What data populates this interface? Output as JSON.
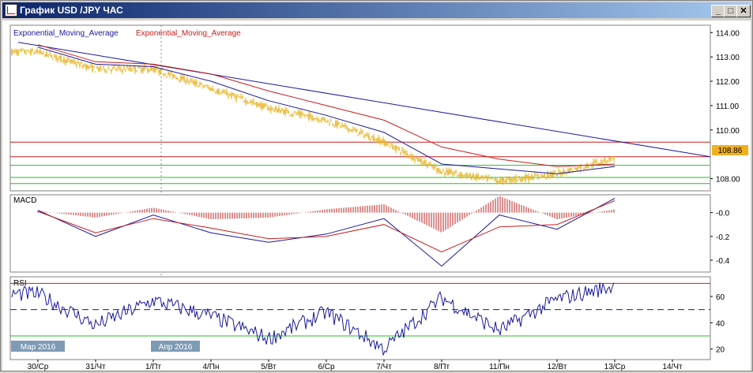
{
  "window": {
    "title": "График USD /JPY  ЧАС",
    "minimize_glyph": "_",
    "restore_glyph": "□",
    "close_glyph": "✕"
  },
  "colors": {
    "candles": "#e6b422",
    "ema_fast": "#1a1a9c",
    "ema_slow": "#c81e1e",
    "trendline": "#1a1a9c",
    "resistance": "#c81e1e",
    "support": "#22c022",
    "current_price_box": "#f0b020",
    "date_badge": "#7e9bb5"
  },
  "price_panel": {
    "legend": [
      "Exponential_Moving_Average",
      "Exponential_Moving_Average"
    ],
    "y_ticks": [
      "114.00",
      "113.00",
      "112.00",
      "111.00",
      "110.00",
      "108.00"
    ],
    "current_price": "108.86",
    "ylim": [
      107.5,
      114.3
    ],
    "horizontal_levels": {
      "resistance": [
        109.5,
        108.9
      ],
      "support": [
        108.55,
        108.05,
        107.8
      ]
    }
  },
  "macd_panel": {
    "label": "MACD",
    "y_ticks": [
      "-0.0",
      "-0.2",
      "-0.4"
    ]
  },
  "rsi_panel": {
    "label": "RSI",
    "y_ticks": [
      "60",
      "40",
      "20"
    ],
    "overbought": 70,
    "oversold": 30,
    "midline": 50
  },
  "x_axis": {
    "labels": [
      "30/Ср",
      "31/Чт",
      "1/Пт",
      "4/Пн",
      "5/Вт",
      "6/Ср",
      "7/Чт",
      "8/Пт",
      "11/Пн",
      "12/Вт",
      "13/Ср",
      "14/Чт"
    ],
    "month_badges": [
      "Мар 2016",
      "Апр 2016"
    ]
  },
  "chart_data": [
    {
      "type": "line",
      "x": [
        "30/Ср",
        "31/Чт",
        "1/Пт",
        "4/Пн",
        "5/Вт",
        "6/Ср",
        "7/Чт",
        "8/Пт",
        "11/Пн",
        "12/Вт",
        "13/Ср"
      ],
      "series": [
        {
          "name": "USD/JPY",
          "values": [
            113.2,
            112.5,
            112.5,
            111.7,
            110.9,
            110.4,
            109.5,
            108.3,
            107.9,
            108.2,
            108.86
          ]
        },
        {
          "name": "Exponential_Moving_Average",
          "values": [
            113.4,
            112.7,
            112.6,
            112.0,
            111.2,
            110.6,
            109.9,
            108.6,
            108.4,
            108.2,
            108.5
          ]
        },
        {
          "name": "Exponential_Moving_Average",
          "values": [
            113.5,
            112.8,
            112.7,
            112.3,
            111.6,
            111.0,
            110.4,
            109.3,
            108.8,
            108.5,
            108.6
          ]
        }
      ],
      "ylim": [
        107.5,
        114.3
      ]
    },
    {
      "type": "line",
      "title": "MACD",
      "x": [
        "30/Ср",
        "31/Чт",
        "1/Пт",
        "4/Пн",
        "5/Вт",
        "6/Ср",
        "7/Чт",
        "8/Пт",
        "11/Пн",
        "12/Вт",
        "13/Ср"
      ],
      "series": [
        {
          "name": "macd",
          "values": [
            0.02,
            -0.2,
            -0.02,
            -0.17,
            -0.25,
            -0.18,
            -0.05,
            -0.45,
            -0.02,
            -0.14,
            0.12
          ]
        },
        {
          "name": "signal",
          "values": [
            0.01,
            -0.17,
            -0.05,
            -0.13,
            -0.22,
            -0.2,
            -0.1,
            -0.33,
            -0.12,
            -0.1,
            0.1
          ]
        }
      ],
      "ylim": [
        -0.5,
        0.15
      ]
    },
    {
      "type": "line",
      "title": "RSI",
      "x": [
        "30/Ср",
        "31/Чт",
        "1/Пт",
        "4/Пн",
        "5/Вт",
        "6/Ср",
        "7/Чт",
        "8/Пт",
        "11/Пн",
        "12/Вт",
        "13/Ср"
      ],
      "series": [
        {
          "name": "RSI",
          "values": [
            62,
            38,
            57,
            45,
            28,
            48,
            20,
            59,
            34,
            58,
            68
          ]
        }
      ],
      "ylim": [
        12,
        75
      ]
    }
  ]
}
